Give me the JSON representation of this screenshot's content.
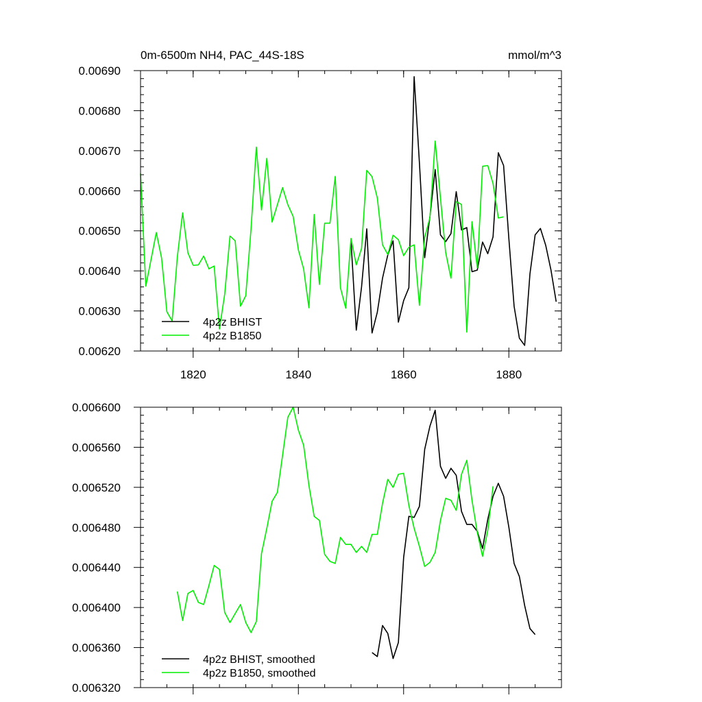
{
  "chart_data": [
    {
      "type": "line",
      "title": "0m-6500m NH4, PAC_44S-18S",
      "units": "mmol/m^3",
      "xlim": [
        1810,
        1890
      ],
      "ylim": [
        0.0062,
        0.0069
      ],
      "x_ticks": [
        1820,
        1840,
        1860,
        1880
      ],
      "x_tick_labels": [
        "1820",
        "1840",
        "1860",
        "1880"
      ],
      "y_ticks": [
        0.0062,
        0.0063,
        0.0064,
        0.0065,
        0.0066,
        0.0067,
        0.0068,
        0.0069
      ],
      "y_tick_labels": [
        "0.00620",
        "0.00630",
        "0.00640",
        "0.00650",
        "0.00660",
        "0.00670",
        "0.00680",
        "0.00690"
      ],
      "grid": false,
      "legend_position": "bottom-left",
      "series": [
        {
          "name": "4p2z BHIST",
          "color": "#000000",
          "x": [
            1850,
            1851,
            1852,
            1853,
            1854,
            1855,
            1856,
            1857,
            1858,
            1859,
            1860,
            1861,
            1862,
            1863,
            1864,
            1865,
            1866,
            1867,
            1868,
            1869,
            1870,
            1871,
            1872,
            1873,
            1874,
            1875,
            1876,
            1877,
            1878,
            1879,
            1880,
            1881,
            1882,
            1883,
            1884,
            1885,
            1886,
            1887,
            1888,
            1889
          ],
          "y": [
            0.006475,
            0.006252,
            0.00636,
            0.006505,
            0.006245,
            0.006297,
            0.006382,
            0.00644,
            0.006475,
            0.006272,
            0.006326,
            0.006358,
            0.006885,
            0.00667,
            0.006433,
            0.006535,
            0.006653,
            0.00649,
            0.006473,
            0.006493,
            0.006598,
            0.006502,
            0.006508,
            0.006398,
            0.006402,
            0.006472,
            0.006443,
            0.006485,
            0.006695,
            0.006663,
            0.00648,
            0.006312,
            0.006232,
            0.006214,
            0.006392,
            0.00649,
            0.006506,
            0.006464,
            0.006403,
            0.006323
          ]
        },
        {
          "name": "4p2z B1850",
          "color": "#00ee00",
          "x": [
            1810,
            1811,
            1812,
            1813,
            1814,
            1815,
            1816,
            1817,
            1818,
            1819,
            1820,
            1821,
            1822,
            1823,
            1824,
            1825,
            1826,
            1827,
            1828,
            1829,
            1830,
            1831,
            1832,
            1833,
            1834,
            1835,
            1836,
            1837,
            1838,
            1839,
            1840,
            1841,
            1842,
            1843,
            1844,
            1845,
            1846,
            1847,
            1848,
            1849,
            1850,
            1851,
            1852,
            1853,
            1854,
            1855,
            1856,
            1857,
            1858,
            1859,
            1860,
            1861,
            1862,
            1863,
            1864,
            1865,
            1866,
            1867,
            1868,
            1869,
            1870,
            1871,
            1872,
            1873,
            1874,
            1875,
            1876,
            1877,
            1878,
            1879
          ],
          "y": [
            0.006643,
            0.006362,
            0.006428,
            0.006496,
            0.006432,
            0.006298,
            0.006275,
            0.006435,
            0.006545,
            0.006445,
            0.006414,
            0.006415,
            0.006437,
            0.006405,
            0.006412,
            0.006255,
            0.006342,
            0.006487,
            0.006475,
            0.006312,
            0.006338,
            0.006505,
            0.006709,
            0.006552,
            0.006681,
            0.006522,
            0.006565,
            0.006608,
            0.006565,
            0.006536,
            0.006452,
            0.006405,
            0.006308,
            0.006541,
            0.006366,
            0.006519,
            0.006519,
            0.006636,
            0.006358,
            0.006307,
            0.006481,
            0.006415,
            0.006456,
            0.006651,
            0.006635,
            0.006582,
            0.006465,
            0.006441,
            0.006489,
            0.006478,
            0.006438,
            0.006459,
            0.006465,
            0.006314,
            0.006483,
            0.006533,
            0.006724,
            0.006582,
            0.006446,
            0.006382,
            0.006573,
            0.006566,
            0.006247,
            0.006523,
            0.006408,
            0.006661,
            0.006663,
            0.006618,
            0.006532,
            0.006535
          ]
        }
      ]
    },
    {
      "type": "line",
      "title": "",
      "xlim": [
        1810,
        1890
      ],
      "ylim": [
        0.00632,
        0.0066
      ],
      "x_ticks": [
        1820,
        1840,
        1860,
        1880
      ],
      "y_ticks": [
        0.00632,
        0.00636,
        0.0064,
        0.00644,
        0.00648,
        0.00652,
        0.00656,
        0.0066
      ],
      "y_tick_labels": [
        "0.006320",
        "0.006360",
        "0.006400",
        "0.006440",
        "0.006480",
        "0.006520",
        "0.006560",
        "0.006600"
      ],
      "grid": false,
      "legend_position": "bottom-left",
      "series": [
        {
          "name": "4p2z BHIST, smoothed",
          "color": "#000000",
          "x": [
            1854,
            1855,
            1856,
            1857,
            1858,
            1859,
            1860,
            1861,
            1862,
            1863,
            1864,
            1865,
            1866,
            1867,
            1868,
            1869,
            1870,
            1871,
            1872,
            1873,
            1874,
            1875,
            1876,
            1877,
            1878,
            1879,
            1880,
            1881,
            1882,
            1883,
            1884,
            1885
          ],
          "y": [
            0.006355,
            0.006351,
            0.006382,
            0.006374,
            0.006349,
            0.006365,
            0.00645,
            0.006491,
            0.00649,
            0.006501,
            0.006558,
            0.006581,
            0.006597,
            0.006541,
            0.006529,
            0.006539,
            0.006532,
            0.006496,
            0.006483,
            0.006483,
            0.006476,
            0.006459,
            0.006488,
            0.006511,
            0.006524,
            0.006511,
            0.00648,
            0.006444,
            0.006431,
            0.006402,
            0.006379,
            0.006373
          ]
        },
        {
          "name": "4p2z B1850, smoothed",
          "color": "#00ee00",
          "x": [
            1817,
            1818,
            1819,
            1820,
            1821,
            1822,
            1823,
            1824,
            1825,
            1826,
            1827,
            1828,
            1829,
            1830,
            1831,
            1832,
            1833,
            1834,
            1835,
            1836,
            1837,
            1838,
            1839,
            1840,
            1841,
            1842,
            1843,
            1844,
            1845,
            1846,
            1847,
            1848,
            1849,
            1850,
            1851,
            1852,
            1853,
            1854,
            1855,
            1856,
            1857,
            1858,
            1859,
            1860,
            1861,
            1862,
            1863,
            1864,
            1865,
            1866,
            1867,
            1868,
            1869,
            1870,
            1871,
            1872,
            1873,
            1874,
            1875,
            1876,
            1877
          ],
          "y": [
            0.006416,
            0.006387,
            0.006414,
            0.006417,
            0.006405,
            0.006403,
            0.006422,
            0.006442,
            0.006438,
            0.006395,
            0.006385,
            0.006394,
            0.006403,
            0.006385,
            0.006375,
            0.006386,
            0.006454,
            0.006479,
            0.006506,
            0.006515,
            0.006552,
            0.00659,
            0.0066,
            0.006577,
            0.006562,
            0.006522,
            0.006491,
            0.006487,
            0.006453,
            0.006446,
            0.006444,
            0.00647,
            0.006463,
            0.006463,
            0.006455,
            0.006461,
            0.006455,
            0.006473,
            0.006473,
            0.006504,
            0.006528,
            0.00652,
            0.006533,
            0.006534,
            0.006502,
            0.006479,
            0.006461,
            0.006441,
            0.006445,
            0.006455,
            0.006487,
            0.006509,
            0.006507,
            0.006497,
            0.006533,
            0.006547,
            0.006507,
            0.006475,
            0.006451,
            0.006477,
            0.006521
          ]
        }
      ]
    }
  ]
}
